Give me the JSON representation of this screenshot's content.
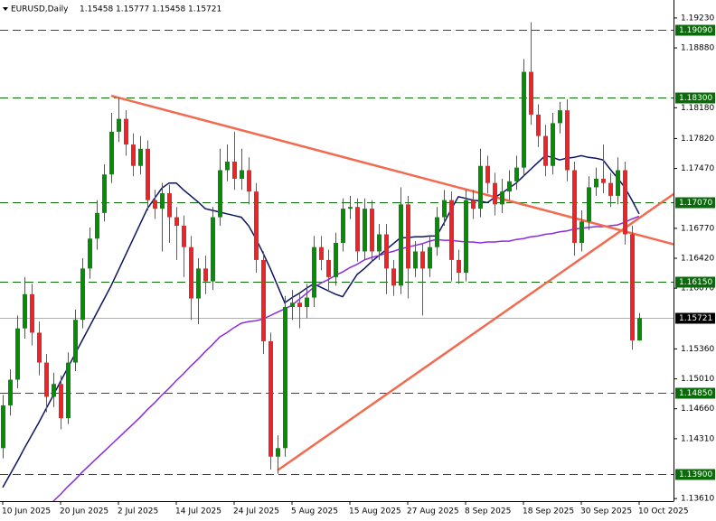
{
  "chart_data": {
    "type": "candlestick",
    "symbol": "EURUSD,Daily",
    "categories": [
      "10 Jun 2025",
      null,
      null,
      null,
      null,
      null,
      null,
      null,
      "20 Jun 2025",
      null,
      null,
      null,
      null,
      null,
      null,
      null,
      "2 Jul 2025",
      null,
      null,
      null,
      null,
      null,
      null,
      null,
      "14 Jul 2025",
      null,
      null,
      null,
      null,
      null,
      null,
      null,
      "24 Jul 2025",
      null,
      null,
      null,
      null,
      null,
      null,
      null,
      "5 Aug 2025",
      null,
      null,
      null,
      null,
      null,
      null,
      null,
      "15 Aug 2025",
      null,
      null,
      null,
      null,
      null,
      null,
      null,
      "27 Aug 2025",
      null,
      null,
      null,
      null,
      null,
      null,
      null,
      "8 Sep 2025",
      null,
      null,
      null,
      null,
      null,
      null,
      null,
      "18 Sep 2025",
      null,
      null,
      null,
      null,
      null,
      null,
      null,
      "30 Sep 2025",
      null,
      null,
      null,
      null,
      null,
      null,
      null,
      "10 Oct 2025"
    ],
    "open": [
      1.142,
      1.147,
      1.15,
      1.156,
      1.16,
      1.1555,
      1.152,
      1.148,
      1.1495,
      1.1455,
      1.152,
      1.157,
      1.163,
      1.1665,
      1.1695,
      1.174,
      1.179,
      1.1805,
      1.1775,
      1.175,
      1.177,
      1.171,
      1.17,
      1.1718,
      1.169,
      1.168,
      1.1655,
      1.1595,
      1.163,
      1.1615,
      1.169,
      1.1745,
      1.1755,
      1.1735,
      1.1745,
      1.172,
      1.164,
      1.1545,
      1.141,
      1.142,
      1.1585,
      1.159,
      1.1585,
      1.1596,
      1.1655,
      1.164,
      1.162,
      1.166,
      1.17,
      1.1702,
      1.165,
      1.17,
      1.165,
      1.167,
      1.163,
      1.161,
      1.1705,
      1.163,
      1.165,
      1.163,
      1.1655,
      1.169,
      1.171,
      1.164,
      1.1625,
      1.171,
      1.17,
      1.175,
      1.173,
      1.1705,
      1.172,
      1.1732,
      1.1748,
      1.186,
      1.181,
      1.1785,
      1.175,
      1.18,
      1.1815,
      1.1745,
      1.166,
      1.1685,
      1.1725,
      1.1735,
      1.173,
      1.1715,
      1.1745,
      1.167,
      1.15458
    ],
    "high": [
      1.1482,
      1.1512,
      1.1575,
      1.162,
      1.1612,
      1.1568,
      1.153,
      1.1508,
      1.1505,
      1.1532,
      1.1582,
      1.1642,
      1.1678,
      1.171,
      1.1752,
      1.1812,
      1.183,
      1.1815,
      1.1788,
      1.1785,
      1.178,
      1.1722,
      1.173,
      1.1728,
      1.1702,
      1.1692,
      1.1668,
      1.1642,
      1.1645,
      1.1702,
      1.177,
      1.1775,
      1.179,
      1.177,
      1.176,
      1.173,
      1.165,
      1.1555,
      1.1435,
      1.1598,
      1.1605,
      1.16,
      1.1612,
      1.1668,
      1.1668,
      1.1652,
      1.1672,
      1.1712,
      1.1715,
      1.1712,
      1.1712,
      1.171,
      1.1682,
      1.1682,
      1.164,
      1.1725,
      1.1715,
      1.1662,
      1.166,
      1.1668,
      1.1702,
      1.1722,
      1.172,
      1.1652,
      1.1722,
      1.1722,
      1.177,
      1.1762,
      1.1742,
      1.1735,
      1.1745,
      1.1762,
      1.1875,
      1.1918,
      1.1822,
      1.1798,
      1.1812,
      1.1825,
      1.1828,
      1.1755,
      1.1698,
      1.1738,
      1.1748,
      1.1775,
      1.1742,
      1.176,
      1.1755,
      1.168,
      1.15777
    ],
    "low": [
      1.1408,
      1.1458,
      1.149,
      1.1548,
      1.154,
      1.1505,
      1.1462,
      1.1468,
      1.1442,
      1.1448,
      1.151,
      1.156,
      1.1618,
      1.1652,
      1.1685,
      1.173,
      1.1778,
      1.1762,
      1.1738,
      1.174,
      1.1698,
      1.1688,
      1.165,
      1.166,
      1.164,
      1.162,
      1.157,
      1.1565,
      1.16,
      1.1605,
      1.168,
      1.1732,
      1.1722,
      1.1722,
      1.1705,
      1.1625,
      1.153,
      1.1395,
      1.139,
      1.141,
      1.157,
      1.156,
      1.1572,
      1.1585,
      1.1628,
      1.1605,
      1.161,
      1.165,
      1.1688,
      1.1638,
      1.164,
      1.1638,
      1.164,
      1.16,
      1.1598,
      1.16,
      1.1595,
      1.162,
      1.1575,
      1.162,
      1.1645,
      1.168,
      1.1615,
      1.1612,
      1.1615,
      1.1688,
      1.169,
      1.1718,
      1.1692,
      1.1695,
      1.171,
      1.1722,
      1.1738,
      1.1798,
      1.1772,
      1.1738,
      1.174,
      1.1788,
      1.1732,
      1.1645,
      1.165,
      1.1675,
      1.1715,
      1.1718,
      1.1702,
      1.1705,
      1.1658,
      1.1535,
      1.15458
    ],
    "close": [
      1.147,
      1.15,
      1.156,
      1.16,
      1.1555,
      1.152,
      1.148,
      1.1495,
      1.1455,
      1.152,
      1.157,
      1.163,
      1.1665,
      1.1695,
      1.174,
      1.179,
      1.1805,
      1.1775,
      1.175,
      1.177,
      1.171,
      1.17,
      1.1718,
      1.169,
      1.168,
      1.1655,
      1.1595,
      1.163,
      1.1615,
      1.169,
      1.1745,
      1.1755,
      1.1735,
      1.1745,
      1.172,
      1.164,
      1.1545,
      1.141,
      1.142,
      1.1585,
      1.159,
      1.1585,
      1.1596,
      1.1655,
      1.164,
      1.162,
      1.166,
      1.17,
      1.1702,
      1.165,
      1.17,
      1.165,
      1.167,
      1.163,
      1.161,
      1.1705,
      1.163,
      1.165,
      1.163,
      1.1655,
      1.169,
      1.171,
      1.164,
      1.1625,
      1.171,
      1.17,
      1.175,
      1.173,
      1.1705,
      1.172,
      1.1732,
      1.1748,
      1.186,
      1.181,
      1.1785,
      1.175,
      1.18,
      1.1815,
      1.1745,
      1.166,
      1.1685,
      1.1725,
      1.1735,
      1.173,
      1.1715,
      1.1745,
      1.167,
      1.1546,
      1.15721
    ],
    "bull_color": "#0a8a0a",
    "bear_color": "#e8262a",
    "series": [
      {
        "color": "#0b1560",
        "values": [
          1.1374,
          1.1389,
          1.1404,
          1.142,
          1.1435,
          1.145,
          1.1466,
          1.1482,
          1.1498,
          1.1514,
          1.153,
          1.1546,
          1.1562,
          1.1578,
          1.1594,
          1.161,
          1.1628,
          1.1646,
          1.1664,
          1.1682,
          1.17,
          1.1712,
          1.1724,
          1.173,
          1.173,
          1.1722,
          1.1715,
          1.1708,
          1.17,
          1.1698,
          1.1696,
          1.1694,
          1.1692,
          1.169,
          1.168,
          1.1665,
          1.1648,
          1.163,
          1.161,
          1.159,
          1.1596,
          1.1601,
          1.1607,
          1.1612,
          1.1608,
          1.1604,
          1.16,
          1.1597,
          1.161,
          1.1623,
          1.163,
          1.1638,
          1.1645,
          1.1652,
          1.1659,
          1.1666,
          1.1666,
          1.1667,
          1.1667,
          1.1668,
          1.1668,
          1.1683,
          1.1699,
          1.1714,
          1.1712,
          1.171,
          1.1709,
          1.1707,
          1.1713,
          1.1718,
          1.1724,
          1.173,
          1.1738,
          1.1746,
          1.1754,
          1.1762,
          1.176,
          1.1757,
          1.1759,
          1.176,
          1.1762,
          1.176,
          1.1759,
          1.1757,
          1.1746,
          1.1736,
          1.1725,
          1.171,
          1.1694
        ]
      },
      {
        "color": "#8a2be2",
        "values": [
          null,
          null,
          null,
          null,
          null,
          null,
          null,
          1.1358,
          1.1366,
          1.1375,
          1.1383,
          1.1392,
          1.14,
          1.1408,
          1.1416,
          1.1424,
          1.1432,
          1.144,
          1.1448,
          1.1456,
          1.1465,
          1.1473,
          1.1482,
          1.149,
          1.1499,
          1.1507,
          1.1516,
          1.1524,
          1.1533,
          1.1541,
          1.155,
          1.1555,
          1.1561,
          1.1566,
          1.1568,
          1.1569,
          1.1571,
          1.1575,
          1.1579,
          1.1583,
          1.1587,
          1.1594,
          1.1601,
          1.1608,
          1.1613,
          1.1617,
          1.1622,
          1.1626,
          1.1631,
          1.1635,
          1.164,
          1.1643,
          1.1645,
          1.1648,
          1.165,
          1.1653,
          1.1655,
          1.1657,
          1.1659,
          1.1662,
          1.1664,
          1.1663,
          1.1663,
          1.1662,
          1.1661,
          1.1661,
          1.166,
          1.1661,
          1.1661,
          1.1662,
          1.1662,
          1.1664,
          1.1665,
          1.1667,
          1.1668,
          1.167,
          1.1671,
          1.1673,
          1.1674,
          1.1676,
          1.1677,
          1.1678,
          1.1679,
          1.1679,
          1.168,
          1.1681,
          1.1684,
          1.1688,
          1.1691
        ]
      }
    ],
    "trendlines": [
      {
        "color": "#f26a4f",
        "x": [
          15,
          88
        ],
        "values": [
          1.1832,
          1.1669
        ]
      },
      {
        "color": "#f26a4f",
        "x": [
          38,
          88
        ],
        "values": [
          1.1394,
          1.1689
        ]
      }
    ],
    "levels": [
      {
        "value": 1.1909,
        "label": "1.19090"
      },
      {
        "value": 1.183,
        "label": "1.18300"
      },
      {
        "value": 1.1707,
        "label": "1.17070"
      },
      {
        "value": 1.1615,
        "label": "1.16150"
      },
      {
        "value": 1.1485,
        "label": "1.14850"
      },
      {
        "value": 1.139,
        "label": "1.13900"
      }
    ],
    "level_color": "#0b6b0b",
    "ylim": [
      1.1358,
      1.1944
    ],
    "yticks": [
      {
        "value": 1.1923,
        "label": "1.19230"
      },
      {
        "value": 1.1888,
        "label": "1.18880"
      },
      {
        "value": 1.1818,
        "label": "1.18180"
      },
      {
        "value": 1.1782,
        "label": "1.17820"
      },
      {
        "value": 1.1747,
        "label": "1.17470"
      },
      {
        "value": 1.1677,
        "label": "1.16770"
      },
      {
        "value": 1.1642,
        "label": "1.16420"
      },
      {
        "value": 1.1607,
        "label": "1.16070"
      },
      {
        "value": 1.1536,
        "label": "1.15360"
      },
      {
        "value": 1.1501,
        "label": "1.15010"
      },
      {
        "value": 1.1466,
        "label": "1.14660"
      },
      {
        "value": 1.1431,
        "label": "1.14310"
      },
      {
        "value": 1.1361,
        "label": "1.13610"
      }
    ]
  }
}
